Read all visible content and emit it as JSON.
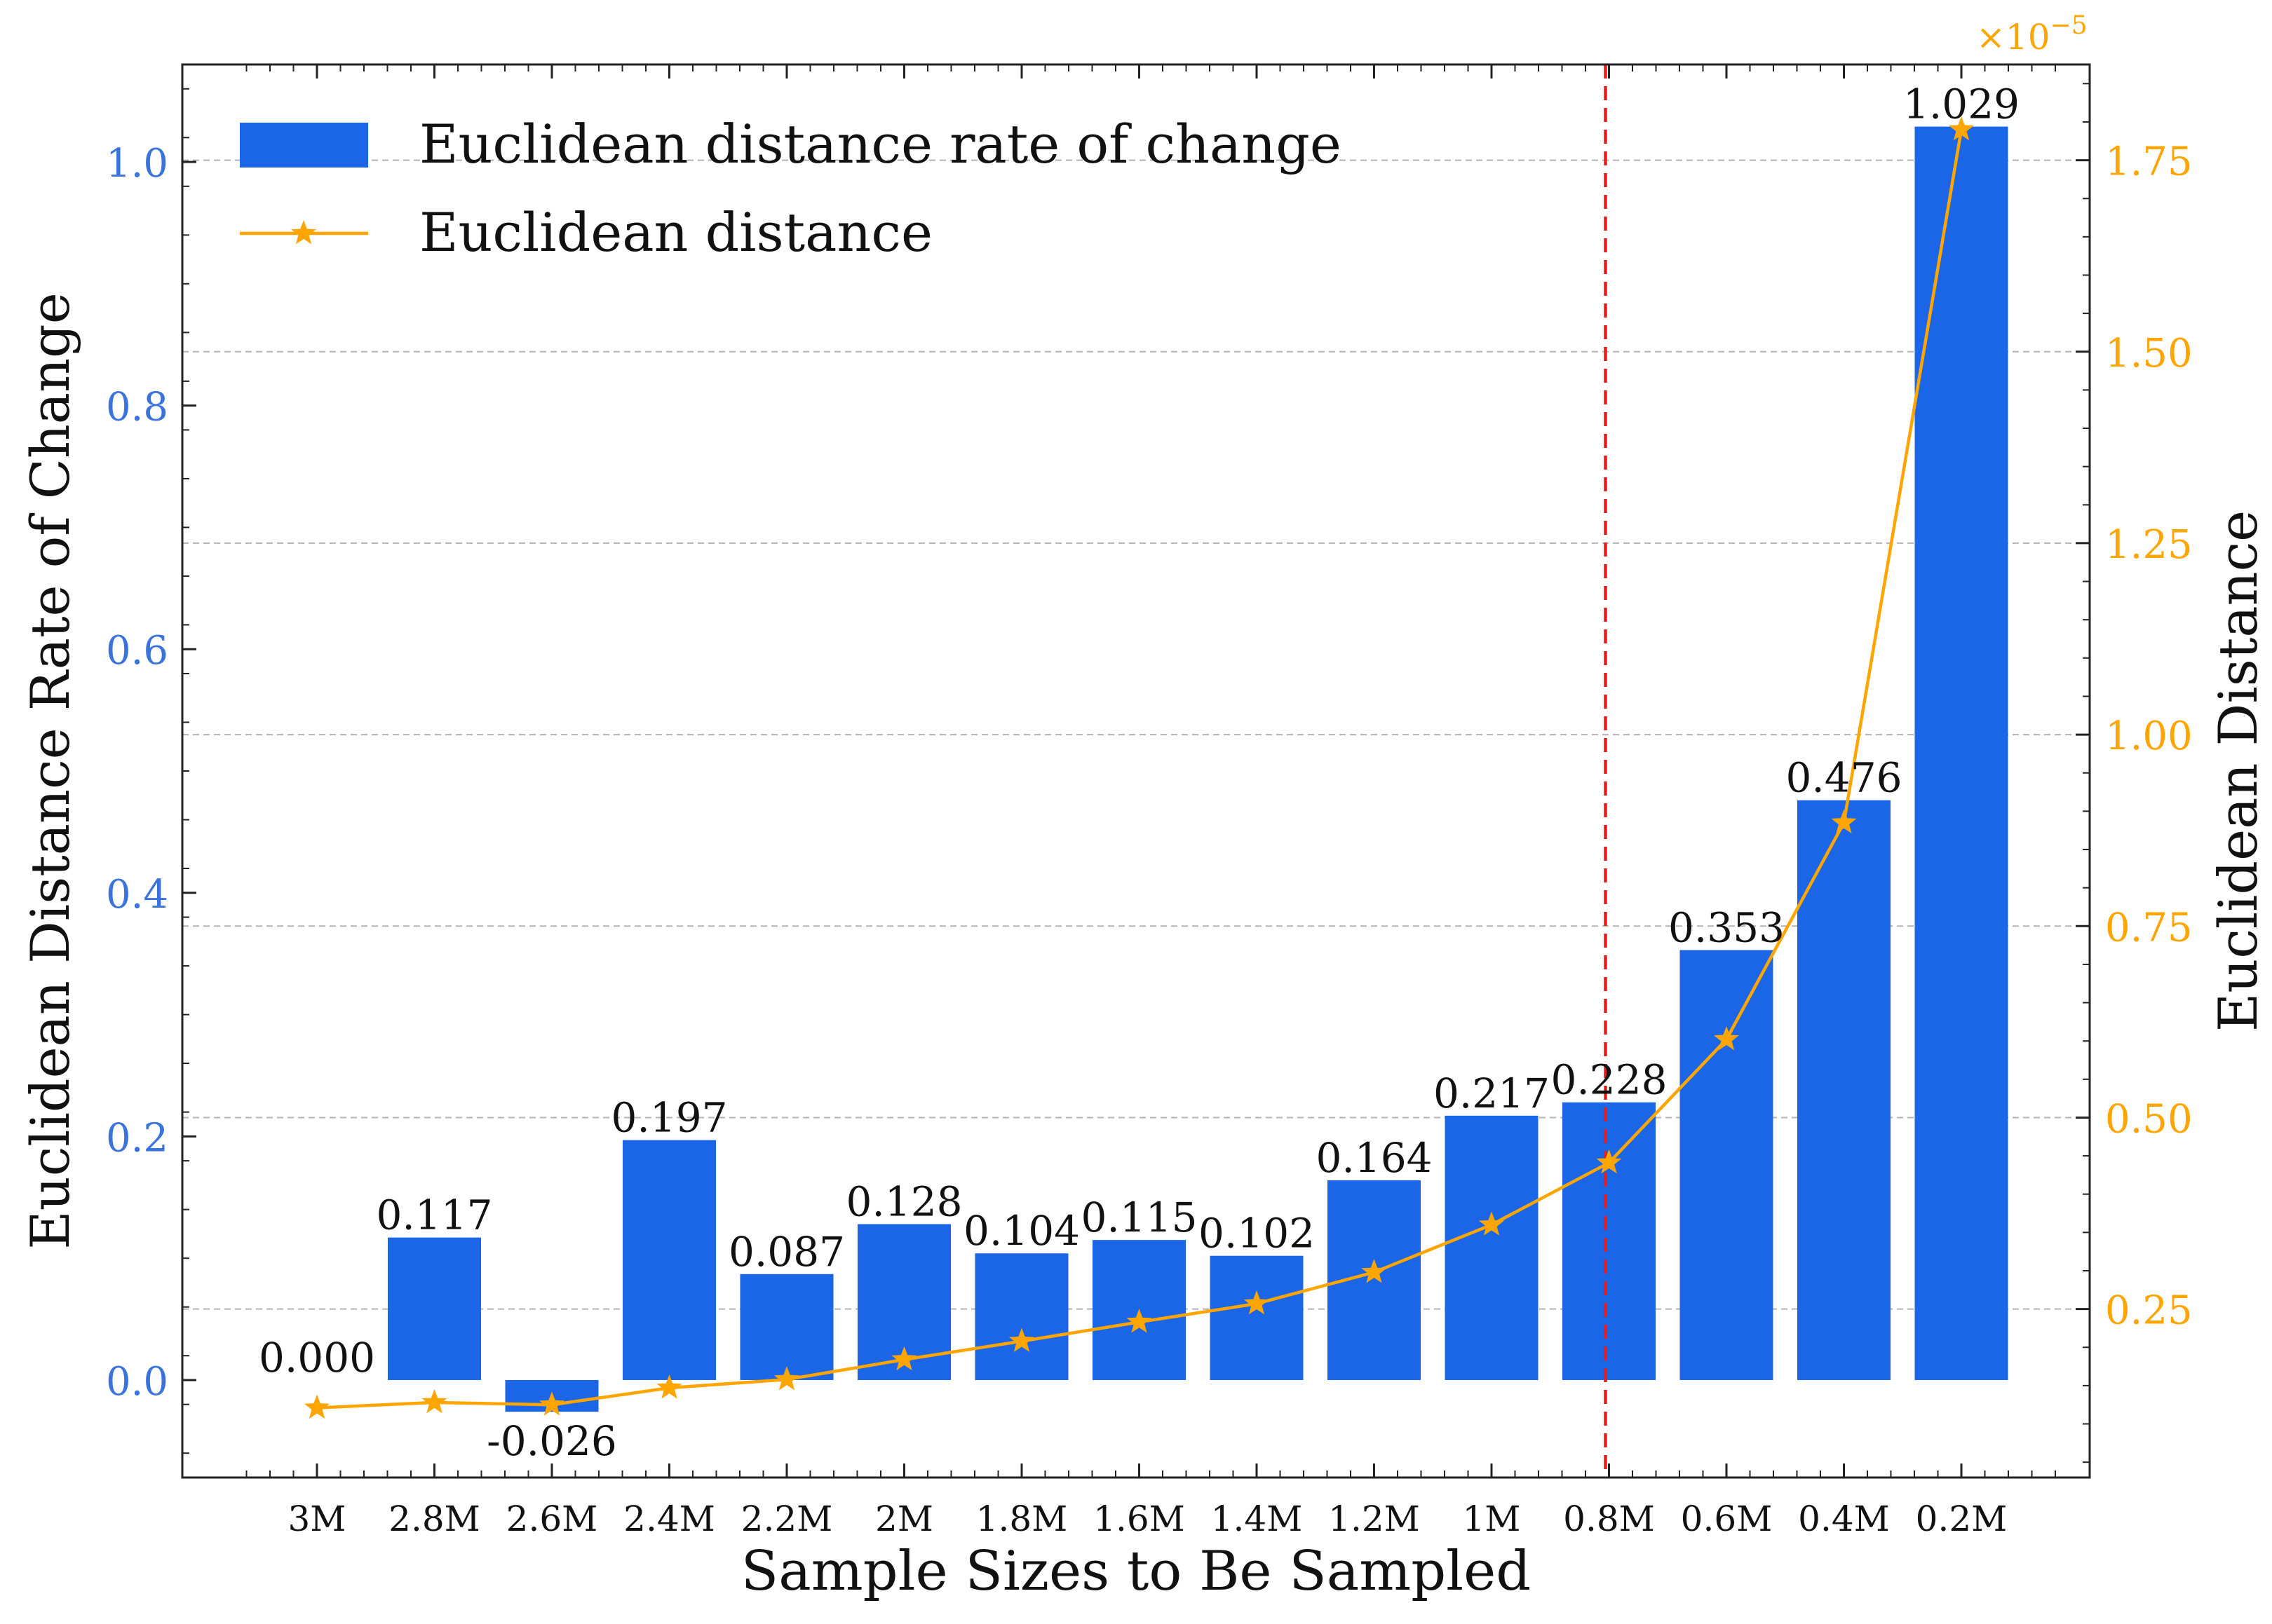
{
  "chart_data": {
    "type": "bar",
    "categories": [
      "3M",
      "2.8M",
      "2.6M",
      "2.4M",
      "2.2M",
      "2M",
      "1.8M",
      "1.6M",
      "1.4M",
      "1.2M",
      "1M",
      "0.8M",
      "0.6M",
      "0.4M",
      "0.2M"
    ],
    "series": [
      {
        "name": "Euclidean distance rate of change",
        "type": "bar",
        "axis": "left",
        "color": "#1a66e6",
        "values": [
          0.0,
          0.117,
          -0.026,
          0.197,
          0.087,
          0.128,
          0.104,
          0.115,
          0.102,
          0.164,
          0.217,
          0.228,
          0.353,
          0.476,
          1.029
        ],
        "labels": [
          "0.000",
          "0.117",
          "-0.026",
          "0.197",
          "0.087",
          "0.128",
          "0.104",
          "0.115",
          "0.102",
          "0.164",
          "0.217",
          "0.228",
          "0.353",
          "0.476",
          "1.029"
        ]
      },
      {
        "name": "Euclidean distance",
        "type": "line",
        "axis": "right",
        "marker": "star",
        "color": "#ffa500",
        "values": [
          0.121,
          0.128,
          0.125,
          0.147,
          0.158,
          0.184,
          0.208,
          0.233,
          0.257,
          0.298,
          0.36,
          0.441,
          0.602,
          0.885,
          1.79
        ]
      }
    ],
    "xlabel": "Sample Sizes to Be Sampled",
    "ylabel": "Euclidean Distance Rate of Change",
    "y2label": "Euclidean Distance",
    "ylim": [
      -0.08,
      1.08
    ],
    "y2lim": [
      0.03,
      1.875
    ],
    "yticks": [
      0.0,
      0.2,
      0.4,
      0.6,
      0.8,
      1.0
    ],
    "ytick_labels": [
      "0.0",
      "0.2",
      "0.4",
      "0.6",
      "0.8",
      "1.0"
    ],
    "y2ticks": [
      0.25,
      0.5,
      0.75,
      1.0,
      1.25,
      1.5,
      1.75
    ],
    "y2tick_labels": [
      "0.25",
      "0.50",
      "0.75",
      "1.00",
      "1.25",
      "1.50",
      "1.75"
    ],
    "y2_multiplier_base": "×10",
    "y2_multiplier_exp": "−5",
    "vline": {
      "category": "0.8M",
      "color": "#e81c1c",
      "style": "dashed"
    },
    "grid": "horizontal dashed at right-axis ticks",
    "legend": "top-left",
    "left_axis_color": "#3a73dc",
    "right_axis_color": "#ffa500"
  }
}
